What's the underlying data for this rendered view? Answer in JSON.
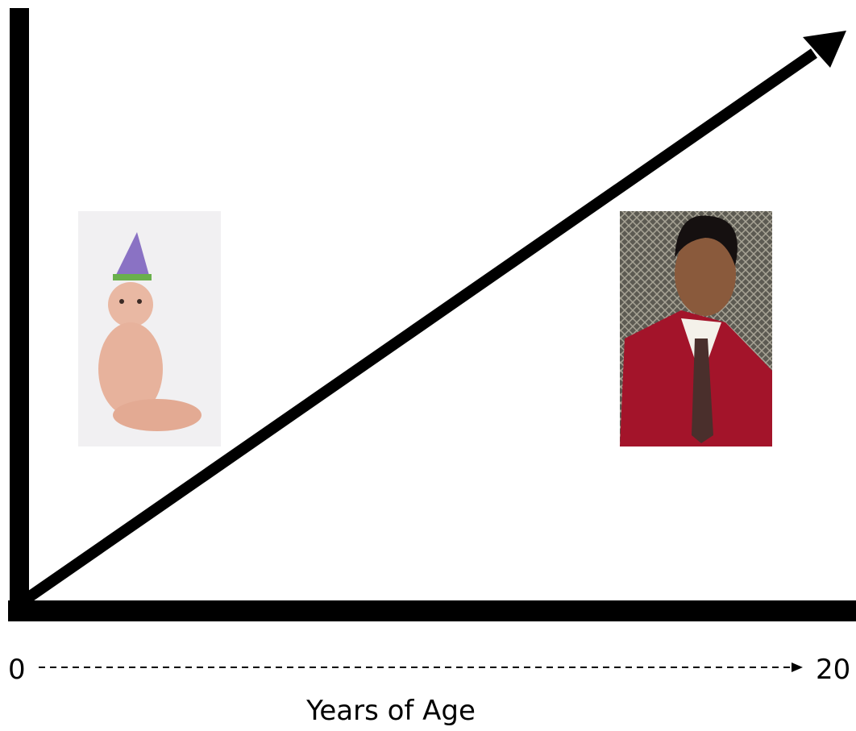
{
  "labels": {
    "start": "0",
    "end": "20",
    "axis_title": "Years of Age"
  }
}
